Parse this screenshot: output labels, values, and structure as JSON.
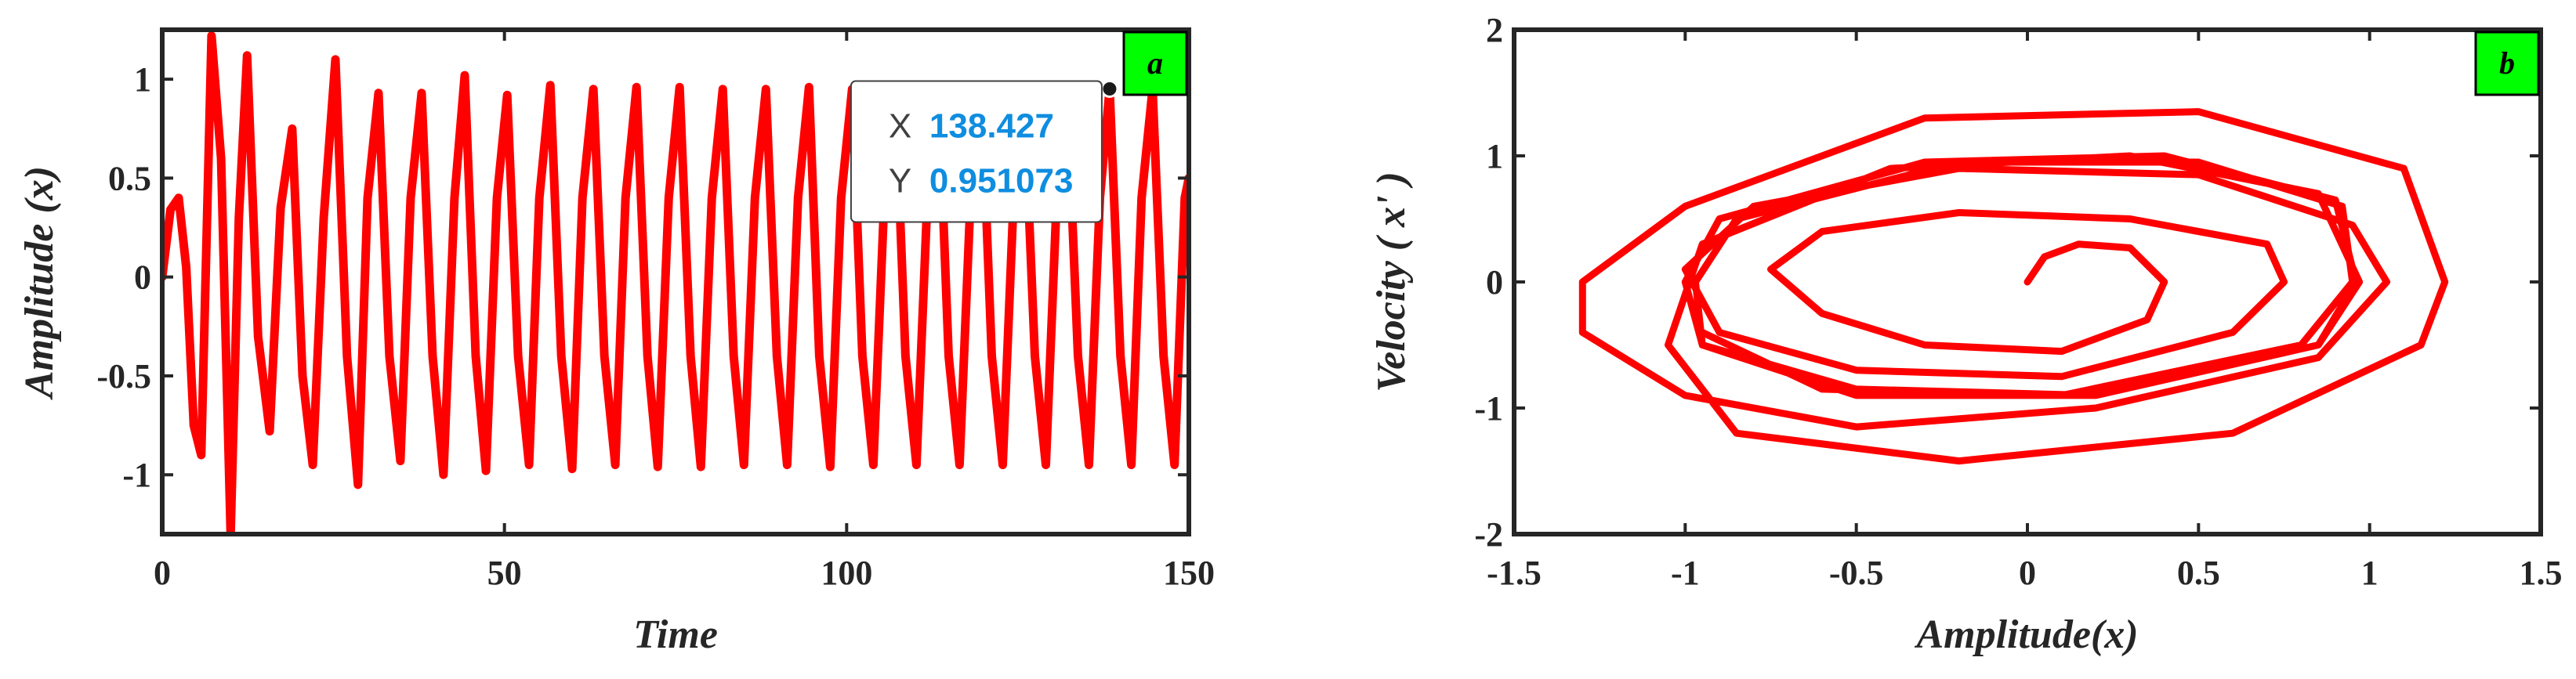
{
  "colors": {
    "line": "#ff0000",
    "axis": "#262626",
    "tag_bg": "#00ff00",
    "datatip_value": "#0f8de0",
    "datatip_key": "#404040"
  },
  "chart_data": [
    {
      "type": "line",
      "panel_tag": "a",
      "xlabel": "Time",
      "ylabel": "Amplitude (x)",
      "xlim": [
        0,
        150
      ],
      "ylim": [
        -1.3,
        1.25
      ],
      "x_ticks": [
        0,
        50,
        100,
        150
      ],
      "x_tick_labels": [
        "0",
        "50",
        "100",
        "150"
      ],
      "y_ticks": [
        -1,
        -0.5,
        0,
        0.5,
        1
      ],
      "y_tick_labels": [
        "-1",
        "-0.5",
        "0",
        "0.5",
        "1"
      ],
      "grid": false,
      "series": [
        {
          "x": [
            0,
            1.2,
            2.4,
            3.5,
            4.6,
            5.7,
            7.2,
            8.6,
            10,
            11.2,
            12.4,
            14,
            15.7,
            17.3,
            19,
            20.5,
            22,
            23.6,
            25.3,
            27,
            28.6,
            30,
            31.6,
            33.2,
            34.8,
            36.3,
            37.9,
            39.5,
            41.1,
            42.7,
            44.2,
            45.8,
            47.3,
            48.9,
            50.4,
            52,
            53.6,
            55.1,
            56.7,
            58.3,
            59.9,
            61.4,
            63,
            64.6,
            66.2,
            67.7,
            69.3,
            70.9,
            72.4,
            74,
            75.6,
            77.2,
            78.7,
            80.3,
            81.9,
            83.5,
            85,
            86.6,
            88.2,
            89.8,
            91.3,
            92.9,
            94.5,
            96,
            97.6,
            99.2,
            100.8,
            102.3,
            103.9,
            105.5,
            107.1,
            108.6,
            110.2,
            111.8,
            113.4,
            114.9,
            116.5,
            118.1,
            119.7,
            121.2,
            122.8,
            124.4,
            125.9,
            127.5,
            129.1,
            130.7,
            132.2,
            133.8,
            135.4,
            137,
            138.427,
            140,
            141.6,
            143.1,
            144.7,
            146.3,
            147.9,
            149.4,
            150
          ],
          "y": [
            0,
            0.34,
            0.4,
            0.05,
            -0.75,
            -0.9,
            1.22,
            0.6,
            -1.3,
            0.3,
            1.12,
            -0.3,
            -0.78,
            0.35,
            0.75,
            -0.5,
            -0.95,
            0.3,
            1.1,
            -0.4,
            -1.05,
            0.4,
            0.93,
            -0.4,
            -0.93,
            0.4,
            0.93,
            -0.4,
            -1.0,
            0.4,
            1.02,
            -0.4,
            -0.98,
            0.4,
            0.92,
            -0.4,
            -0.95,
            0.4,
            0.97,
            -0.4,
            -0.97,
            0.4,
            0.95,
            -0.4,
            -0.95,
            0.4,
            0.96,
            -0.4,
            -0.96,
            0.4,
            0.96,
            -0.4,
            -0.96,
            0.4,
            0.95,
            -0.4,
            -0.95,
            0.4,
            0.95,
            -0.4,
            -0.95,
            0.4,
            0.96,
            -0.4,
            -0.96,
            0.4,
            0.95,
            -0.4,
            -0.95,
            0.4,
            0.95,
            -0.4,
            -0.95,
            0.4,
            0.95,
            -0.4,
            -0.95,
            0.4,
            0.95,
            -0.4,
            -0.95,
            0.4,
            0.95,
            -0.4,
            -0.95,
            0.4,
            0.95,
            -0.4,
            -0.95,
            0.4,
            0.951073,
            -0.4,
            -0.95,
            0.4,
            0.95,
            -0.4,
            -0.95,
            0.4,
            0.5
          ]
        }
      ],
      "datatip": {
        "x_key": "X",
        "x_value": "138.427",
        "y_key": "Y",
        "y_value": "0.951073",
        "point": [
          138.427,
          0.951073
        ]
      }
    },
    {
      "type": "line",
      "panel_tag": "b",
      "xlabel": "Amplitude(x)",
      "ylabel": "Velocity ( x' )",
      "xlim": [
        -1.5,
        1.5
      ],
      "ylim": [
        -2,
        2
      ],
      "x_ticks": [
        -1.5,
        -1,
        -0.5,
        0,
        0.5,
        1,
        1.5
      ],
      "x_tick_labels": [
        "-1.5",
        "-1",
        "-0.5",
        "0",
        "0.5",
        "1",
        "1.5"
      ],
      "y_ticks": [
        -2,
        -1,
        0,
        1,
        2
      ],
      "y_tick_labels": [
        "-2",
        "-1",
        "0",
        "1",
        "2"
      ],
      "grid": false,
      "series": [
        {
          "x": [
            0,
            0.05,
            0.15,
            0.3,
            0.4,
            0.35,
            0.1,
            -0.3,
            -0.6,
            -0.75,
            -0.6,
            -0.2,
            0.3,
            0.7,
            0.75,
            0.6,
            0.1,
            -0.5,
            -0.9,
            -1.0,
            -0.8,
            -0.2,
            0.5,
            0.95,
            1.05,
            0.85,
            0.2,
            -0.5,
            -1.0,
            -1.3,
            -1.3,
            -1.0,
            -0.3,
            0.5,
            1.1,
            1.22,
            1.15,
            0.6,
            -0.2,
            -0.85,
            -1.05,
            -0.95,
            -0.4,
            0.3,
            0.85,
            0.97,
            0.85,
            0.2,
            -0.5,
            -0.95,
            -1.0,
            -0.9,
            -0.3,
            0.4,
            0.9,
            0.96,
            0.85,
            0.2,
            -0.5,
            -0.95,
            -0.97,
            -0.85,
            -0.2,
            0.5,
            0.92,
            0.95,
            0.8,
            0.1,
            -0.6,
            -0.95
          ],
          "y": [
            0,
            0.2,
            0.3,
            0.27,
            0.0,
            -0.3,
            -0.55,
            -0.5,
            -0.25,
            0.1,
            0.4,
            0.55,
            0.5,
            0.3,
            0.0,
            -0.4,
            -0.75,
            -0.7,
            -0.4,
            0.1,
            0.6,
            0.9,
            0.85,
            0.45,
            0.0,
            -0.6,
            -1.0,
            -1.15,
            -0.9,
            -0.4,
            0.0,
            0.6,
            1.3,
            1.35,
            0.9,
            0.0,
            -0.5,
            -1.2,
            -1.42,
            -1.2,
            -0.5,
            0.3,
            0.9,
            1.0,
            0.7,
            0.0,
            -0.5,
            -0.9,
            -0.85,
            -0.5,
            0.0,
            0.5,
            0.95,
            1.0,
            0.65,
            0.0,
            -0.5,
            -0.9,
            -0.9,
            -0.5,
            0.0,
            0.5,
            0.95,
            0.95,
            0.6,
            0.0,
            -0.5,
            -0.9,
            -0.85,
            -0.4
          ]
        }
      ]
    }
  ]
}
